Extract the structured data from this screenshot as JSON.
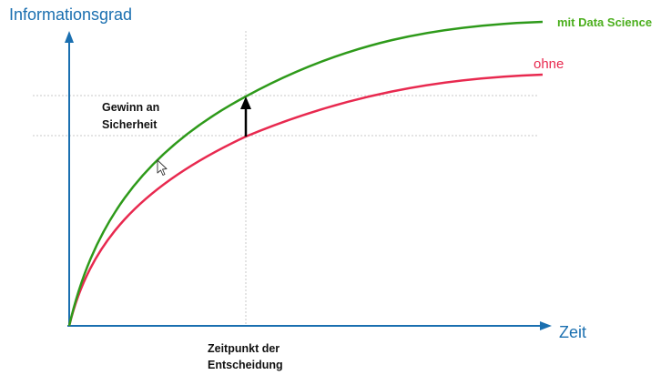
{
  "diagram": {
    "y_axis_title": "Informationsgrad",
    "x_axis_title": "Zeit",
    "curve_with": {
      "label": "mit Data Science",
      "color": "#2e9a1a",
      "label_color": "#4caf1e"
    },
    "curve_without": {
      "label": "ohne",
      "color": "#e8294f"
    },
    "axis_color": "#1a6fb0",
    "gain_annotation": {
      "line1": "Gewinn an",
      "line2": "Sicherheit"
    },
    "decision_annotation": {
      "line1": "Zeitpunkt der",
      "line2": "Entscheidung"
    }
  }
}
